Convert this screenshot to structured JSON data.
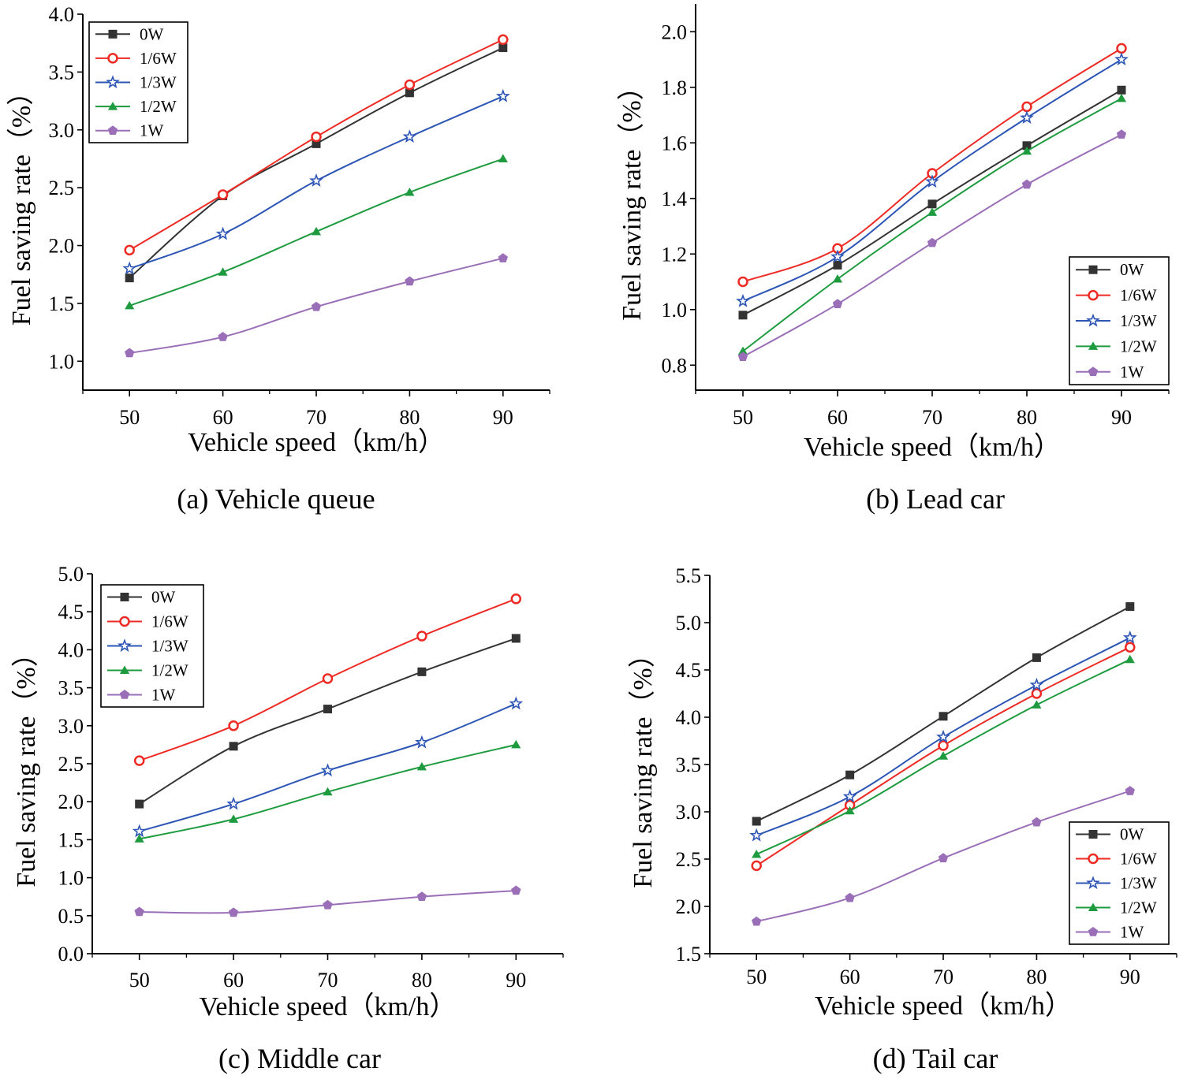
{
  "figure": {
    "colors": {
      "0W": "#333333",
      "1/6W": "#ee2a24",
      "1/3W": "#2c55b5",
      "1/2W": "#1e9b3f",
      "1W": "#9a6fb8"
    },
    "markers": {
      "0W": "square",
      "1/6W": "circle",
      "1/3W": "star",
      "1/2W": "triangle",
      "1W": "pentagon"
    }
  },
  "chart_data": [
    {
      "id": "a",
      "type": "line",
      "caption": "(a) Vehicle queue",
      "xlabel": "Vehicle speed（km/h）",
      "ylabel": "Fuel saving rate（%）",
      "x": [
        50,
        60,
        70,
        80,
        90
      ],
      "xlim": [
        45,
        95
      ],
      "ylim": [
        0.75,
        4.0
      ],
      "yticks": [
        "1.0",
        "1.5",
        "2.0",
        "2.5",
        "3.0",
        "3.5",
        "4.0"
      ],
      "legend_position": "top-left",
      "series": [
        {
          "name": "0W",
          "values": [
            1.72,
            2.43,
            2.88,
            3.32,
            3.71
          ]
        },
        {
          "name": "1/6W",
          "values": [
            1.96,
            2.44,
            2.94,
            3.39,
            3.78
          ]
        },
        {
          "name": "1/3W",
          "values": [
            1.8,
            2.1,
            2.56,
            2.94,
            3.29
          ]
        },
        {
          "name": "1/2W",
          "values": [
            1.48,
            1.77,
            2.12,
            2.46,
            2.75
          ]
        },
        {
          "name": "1W",
          "values": [
            1.07,
            1.21,
            1.47,
            1.69,
            1.89
          ]
        }
      ]
    },
    {
      "id": "b",
      "type": "line",
      "caption": "(b) Lead car",
      "xlabel": "Vehicle speed（km/h）",
      "ylabel": "Fuel saving rate（%）",
      "x": [
        50,
        60,
        70,
        80,
        90
      ],
      "xlim": [
        45,
        95
      ],
      "ylim": [
        0.71,
        2.1
      ],
      "yticks": [
        "0.8",
        "1.0",
        "1.2",
        "1.4",
        "1.6",
        "1.8",
        "2.0"
      ],
      "legend_position": "bottom-right",
      "series": [
        {
          "name": "0W",
          "values": [
            0.98,
            1.16,
            1.38,
            1.59,
            1.79
          ]
        },
        {
          "name": "1/6W",
          "values": [
            1.1,
            1.22,
            1.49,
            1.73,
            1.94
          ]
        },
        {
          "name": "1/3W",
          "values": [
            1.03,
            1.19,
            1.46,
            1.69,
            1.9
          ]
        },
        {
          "name": "1/2W",
          "values": [
            0.85,
            1.11,
            1.35,
            1.57,
            1.76
          ]
        },
        {
          "name": "1W",
          "values": [
            0.83,
            1.02,
            1.24,
            1.45,
            1.63
          ]
        }
      ]
    },
    {
      "id": "c",
      "type": "line",
      "caption": "(c) Middle car",
      "xlabel": "Vehicle speed（km/h）",
      "ylabel": "Fuel saving rate（%）",
      "x": [
        50,
        60,
        70,
        80,
        90
      ],
      "xlim": [
        45,
        95
      ],
      "ylim": [
        0.0,
        5.0
      ],
      "yticks": [
        "0.0",
        "0.5",
        "1.0",
        "1.5",
        "2.0",
        "2.5",
        "3.0",
        "3.5",
        "4.0",
        "4.5",
        "5.0"
      ],
      "legend_position": "top-left",
      "series": [
        {
          "name": "0W",
          "values": [
            1.97,
            2.73,
            3.22,
            3.71,
            4.15
          ]
        },
        {
          "name": "1/6W",
          "values": [
            2.54,
            3.0,
            3.62,
            4.18,
            4.67
          ]
        },
        {
          "name": "1/3W",
          "values": [
            1.61,
            1.97,
            2.41,
            2.78,
            3.29
          ]
        },
        {
          "name": "1/2W",
          "values": [
            1.51,
            1.77,
            2.13,
            2.46,
            2.75
          ]
        },
        {
          "name": "1W",
          "values": [
            0.55,
            0.54,
            0.64,
            0.75,
            0.83
          ]
        }
      ]
    },
    {
      "id": "d",
      "type": "line",
      "caption": "(d) Tail car",
      "xlabel": "Vehicle speed（km/h）",
      "ylabel": "Fuel saving rate（%）",
      "x": [
        50,
        60,
        70,
        80,
        90
      ],
      "xlim": [
        45,
        95
      ],
      "ylim": [
        1.5,
        5.5
      ],
      "yticks": [
        "1.5",
        "2.0",
        "2.5",
        "3.0",
        "3.5",
        "4.0",
        "4.5",
        "5.0",
        "5.5"
      ],
      "legend_position": "bottom-right",
      "series": [
        {
          "name": "0W",
          "values": [
            2.9,
            3.39,
            4.01,
            4.63,
            5.17
          ]
        },
        {
          "name": "1/6W",
          "values": [
            2.43,
            3.07,
            3.7,
            4.25,
            4.74
          ]
        },
        {
          "name": "1/3W",
          "values": [
            2.75,
            3.16,
            3.79,
            4.34,
            4.84
          ]
        },
        {
          "name": "1/2W",
          "values": [
            2.55,
            3.01,
            3.59,
            4.13,
            4.61
          ]
        },
        {
          "name": "1W",
          "values": [
            1.84,
            2.09,
            2.51,
            2.89,
            3.22
          ]
        }
      ]
    }
  ]
}
